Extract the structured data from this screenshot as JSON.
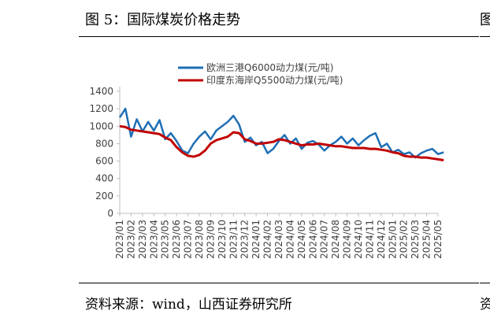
{
  "figure": {
    "title": "图 5：国际煤炭价格走势",
    "next_title_fragment": "图",
    "source": "资料来源：wind，山西证券研究所",
    "next_source_fragment": "资"
  },
  "colors": {
    "series_1": "#1f6fb5",
    "series_2": "#c00000",
    "axis": "#bfbfbf",
    "text": "#404040"
  },
  "chart_data": {
    "type": "line",
    "title": "",
    "xlabel": "",
    "ylabel": "",
    "ylim": [
      0,
      1400
    ],
    "yticks": [
      0,
      200,
      400,
      600,
      800,
      1000,
      1200,
      1400
    ],
    "grid": false,
    "legend_position": "top",
    "x_tick_labels": [
      "2023/01",
      "2023/02",
      "2023/03",
      "2023/04",
      "2023/05",
      "2023/06",
      "2023/07",
      "2023/08",
      "2023/09",
      "2023/10",
      "2023/11",
      "2023/12",
      "2024/01",
      "2024/02",
      "2024/03",
      "2024/04",
      "2024/05",
      "2024/06",
      "2024/07",
      "2024/08",
      "2024/09",
      "2024/10",
      "2024/11",
      "2024/12",
      "2025/01",
      "2025/02",
      "2025/03",
      "2025/04",
      "2025/05"
    ],
    "series": [
      {
        "name": "欧洲三港Q6000动力煤(元/吨)",
        "color": "#1f6fb5",
        "x": [
          "2023/01",
          "2023/01",
          "2023/02",
          "2023/02",
          "2023/03",
          "2023/03",
          "2023/04",
          "2023/04",
          "2023/05",
          "2023/05",
          "2023/06",
          "2023/06",
          "2023/07",
          "2023/07",
          "2023/08",
          "2023/08",
          "2023/09",
          "2023/09",
          "2023/10",
          "2023/10",
          "2023/11",
          "2023/11",
          "2023/12",
          "2023/12",
          "2024/01",
          "2024/01",
          "2024/02",
          "2024/02",
          "2024/03",
          "2024/03",
          "2024/04",
          "2024/04",
          "2024/05",
          "2024/05",
          "2024/06",
          "2024/06",
          "2024/07",
          "2024/07",
          "2024/08",
          "2024/08",
          "2024/09",
          "2024/09",
          "2024/10",
          "2024/10",
          "2024/11",
          "2024/11",
          "2024/12",
          "2024/12",
          "2025/01",
          "2025/01",
          "2025/02",
          "2025/02",
          "2025/03",
          "2025/03",
          "2025/04",
          "2025/04",
          "2025/05",
          "2025/05"
        ],
        "values": [
          1100,
          1200,
          880,
          1080,
          940,
          1050,
          950,
          1070,
          850,
          920,
          830,
          720,
          690,
          800,
          880,
          940,
          850,
          950,
          1000,
          1050,
          1120,
          1020,
          820,
          870,
          780,
          820,
          690,
          740,
          830,
          900,
          800,
          860,
          740,
          810,
          830,
          790,
          720,
          780,
          820,
          880,
          800,
          860,
          780,
          840,
          890,
          920,
          760,
          800,
          700,
          730,
          680,
          700,
          640,
          690,
          720,
          740,
          680,
          700
        ]
      },
      {
        "name": "印度东海岸Q5500动力煤(元/吨)",
        "color": "#c00000",
        "x": [
          "2023/01",
          "2023/01",
          "2023/02",
          "2023/02",
          "2023/03",
          "2023/03",
          "2023/04",
          "2023/04",
          "2023/05",
          "2023/05",
          "2023/06",
          "2023/06",
          "2023/07",
          "2023/07",
          "2023/08",
          "2023/08",
          "2023/09",
          "2023/09",
          "2023/10",
          "2023/10",
          "2023/11",
          "2023/11",
          "2023/12",
          "2023/12",
          "2024/01",
          "2024/01",
          "2024/02",
          "2024/02",
          "2024/03",
          "2024/03",
          "2024/04",
          "2024/04",
          "2024/05",
          "2024/05",
          "2024/06",
          "2024/06",
          "2024/07",
          "2024/07",
          "2024/08",
          "2024/08",
          "2024/09",
          "2024/09",
          "2024/10",
          "2024/10",
          "2024/11",
          "2024/11",
          "2024/12",
          "2024/12",
          "2025/01",
          "2025/01",
          "2025/02",
          "2025/02",
          "2025/03",
          "2025/03",
          "2025/04",
          "2025/04",
          "2025/05",
          "2025/05"
        ],
        "values": [
          1000,
          990,
          960,
          950,
          940,
          930,
          920,
          910,
          870,
          840,
          760,
          700,
          660,
          650,
          670,
          720,
          800,
          840,
          860,
          880,
          930,
          920,
          850,
          830,
          800,
          800,
          810,
          820,
          850,
          840,
          820,
          800,
          780,
          790,
          790,
          800,
          790,
          780,
          770,
          770,
          760,
          750,
          750,
          750,
          740,
          740,
          730,
          720,
          700,
          690,
          660,
          650,
          650,
          640,
          640,
          630,
          620,
          610
        ]
      }
    ]
  }
}
